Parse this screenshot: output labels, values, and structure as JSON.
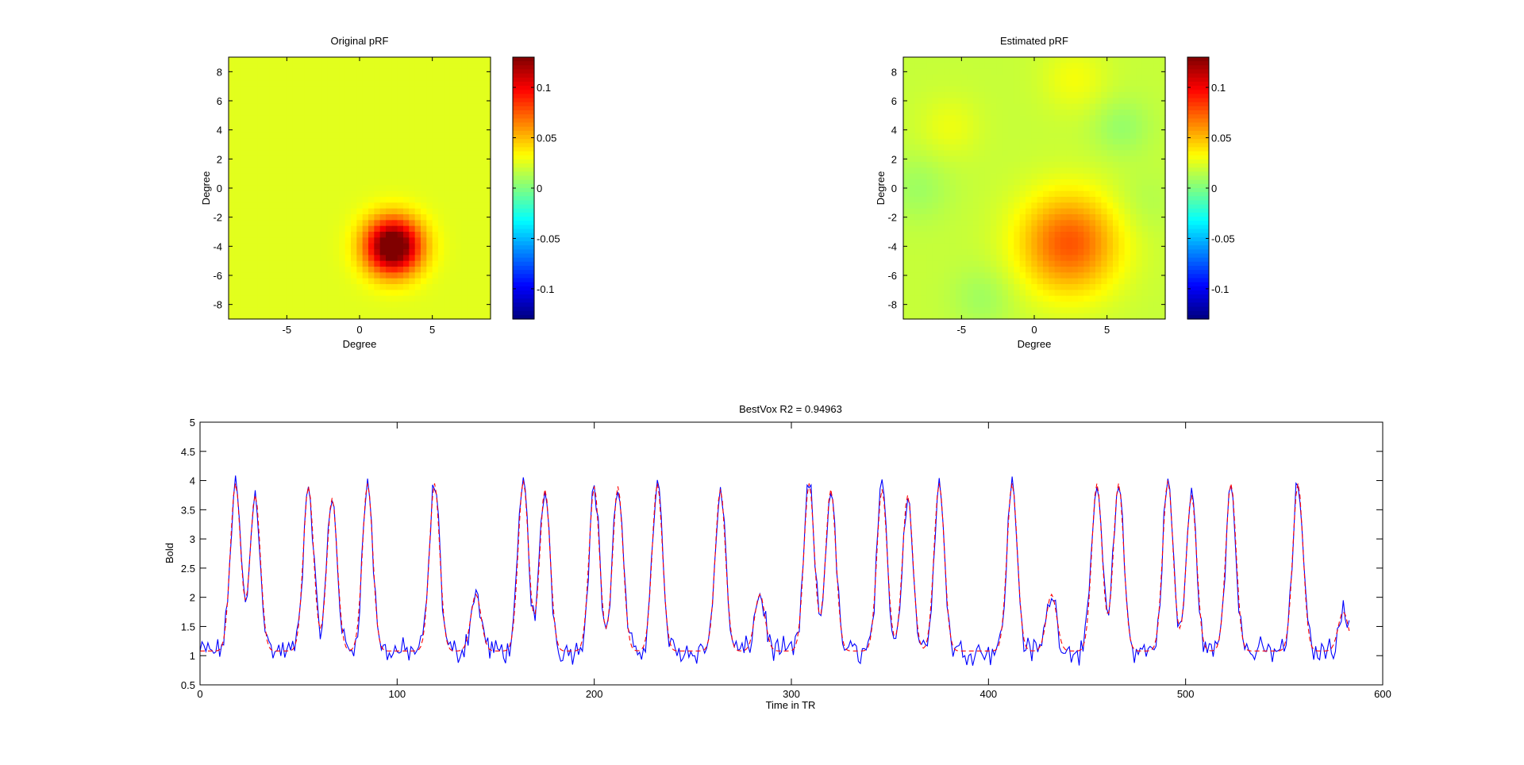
{
  "chart_data": [
    {
      "type": "heatmap",
      "title": "Original pRF",
      "xlabel": "Degree",
      "ylabel": "Degree",
      "xlim": [
        -9,
        9
      ],
      "ylim": [
        -9,
        9
      ],
      "xticks": [
        -5,
        0,
        5
      ],
      "yticks": [
        8,
        6,
        4,
        2,
        0,
        -2,
        -4,
        -6,
        -8
      ],
      "clim": [
        -0.13,
        0.13
      ],
      "colormap": "jet",
      "colorbar_ticks": [
        0.1,
        0.05,
        0,
        -0.05,
        -0.1
      ],
      "background_value": 0.025,
      "blobs": [
        {
          "x": 2.3,
          "y": -4.0,
          "sigma": 1.35,
          "peak": 0.128
        }
      ]
    },
    {
      "type": "heatmap",
      "title": "Estimated pRF",
      "xlabel": "Degree",
      "ylabel": "Degree",
      "xlim": [
        -9,
        9
      ],
      "ylim": [
        -9,
        9
      ],
      "xticks": [
        -5,
        0,
        5
      ],
      "yticks": [
        8,
        6,
        4,
        2,
        0,
        -2,
        -4,
        -6,
        -8
      ],
      "clim": [
        -0.13,
        0.13
      ],
      "colormap": "jet",
      "colorbar_ticks": [
        0.1,
        0.05,
        0,
        -0.05,
        -0.1
      ],
      "background_value": 0.018,
      "blobs": [
        {
          "x": 2.4,
          "y": -3.8,
          "sigma": 2.4,
          "peak": 0.058
        },
        {
          "x": 2.8,
          "y": 7.5,
          "sigma": 1.6,
          "peak": 0.012
        },
        {
          "x": -5.8,
          "y": 4.2,
          "sigma": 1.5,
          "peak": 0.01
        },
        {
          "x": 6.0,
          "y": 4.2,
          "sigma": 1.4,
          "peak": -0.012
        },
        {
          "x": -8.0,
          "y": 0.0,
          "sigma": 1.6,
          "peak": -0.01
        },
        {
          "x": -3.5,
          "y": -7.5,
          "sigma": 1.5,
          "peak": -0.01
        },
        {
          "x": 7.5,
          "y": -1.0,
          "sigma": 1.5,
          "peak": -0.006
        }
      ]
    },
    {
      "type": "line",
      "title": "BestVox R2 = 0.94963",
      "xlabel": "Time in TR",
      "ylabel": "Bold",
      "xlim": [
        0,
        600
      ],
      "ylim": [
        0.5,
        5
      ],
      "xticks": [
        0,
        100,
        200,
        300,
        400,
        500,
        600
      ],
      "yticks": [
        0.5,
        1,
        1.5,
        2,
        2.5,
        3,
        3.5,
        4,
        4.5,
        5
      ],
      "n_points": 584,
      "baseline": 1.08,
      "peaks": [
        {
          "t": 18,
          "h": 3.95
        },
        {
          "t": 28,
          "h": 3.75
        },
        {
          "t": 55,
          "h": 3.9
        },
        {
          "t": 67,
          "h": 3.7
        },
        {
          "t": 85,
          "h": 3.95
        },
        {
          "t": 119,
          "h": 3.95
        },
        {
          "t": 140,
          "h": 2.05
        },
        {
          "t": 164,
          "h": 4.0
        },
        {
          "t": 175,
          "h": 3.85
        },
        {
          "t": 200,
          "h": 3.9
        },
        {
          "t": 212,
          "h": 3.9
        },
        {
          "t": 232,
          "h": 3.95
        },
        {
          "t": 264,
          "h": 3.85
        },
        {
          "t": 284,
          "h": 2.05
        },
        {
          "t": 309,
          "h": 3.95
        },
        {
          "t": 320,
          "h": 3.85
        },
        {
          "t": 346,
          "h": 3.85
        },
        {
          "t": 359,
          "h": 3.75
        },
        {
          "t": 375,
          "h": 3.95
        },
        {
          "t": 412,
          "h": 3.95
        },
        {
          "t": 432,
          "h": 2.05
        },
        {
          "t": 455,
          "h": 3.95
        },
        {
          "t": 466,
          "h": 3.95
        },
        {
          "t": 491,
          "h": 4.0
        },
        {
          "t": 503,
          "h": 3.75
        },
        {
          "t": 523,
          "h": 3.95
        },
        {
          "t": 557,
          "h": 3.95
        },
        {
          "t": 580,
          "h": 1.75
        }
      ],
      "series": [
        {
          "role": "measured",
          "color": "#0000ff",
          "style": "solid",
          "noise": 0.15
        },
        {
          "role": "fitted",
          "color": "#ff0000",
          "style": "dashed",
          "noise": 0
        }
      ]
    }
  ]
}
